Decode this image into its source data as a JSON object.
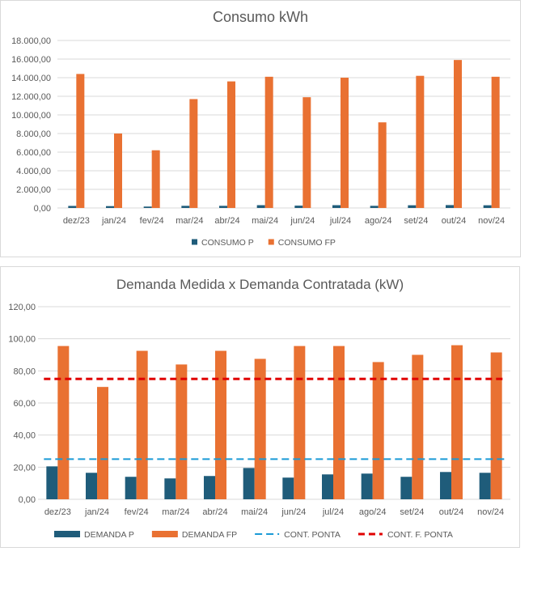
{
  "chart_data": [
    {
      "type": "bar",
      "title": "Consumo kWh",
      "categories": [
        "dez/23",
        "jan/24",
        "fev/24",
        "mar/24",
        "abr/24",
        "mai/24",
        "jun/24",
        "jul/24",
        "ago/24",
        "set/24",
        "out/24",
        "nov/24"
      ],
      "series": [
        {
          "name": "CONSUMO P",
          "color": "#1F5C7A",
          "values": [
            220,
            200,
            150,
            230,
            230,
            300,
            250,
            300,
            230,
            290,
            310,
            290
          ]
        },
        {
          "name": "CONSUMO FP",
          "color": "#E97132",
          "values": [
            14400,
            8000,
            6200,
            11700,
            13600,
            14100,
            11900,
            14000,
            9200,
            14200,
            15900,
            14100
          ]
        }
      ],
      "yticks": [
        "0,00",
        "2.000,00",
        "4.000,00",
        "6.000,00",
        "8.000,00",
        "10.000,00",
        "12.000,00",
        "14.000,00",
        "16.000,00",
        "18.000,00"
      ],
      "ylim": [
        0,
        18000
      ],
      "grid": true,
      "legend_position": "bottom"
    },
    {
      "type": "bar",
      "title": "Demanda Medida x Demanda Contratada (kW)",
      "categories": [
        "dez/23",
        "jan/24",
        "fev/24",
        "mar/24",
        "abr/24",
        "mai/24",
        "jun/24",
        "jul/24",
        "ago/24",
        "set/24",
        "out/24",
        "nov/24"
      ],
      "series": [
        {
          "name": "DEMANDA P",
          "type": "bar",
          "color": "#1F5C7A",
          "values": [
            20.5,
            16.5,
            14,
            13,
            14.5,
            19.5,
            13.5,
            15.5,
            16,
            14,
            17,
            16.5
          ]
        },
        {
          "name": "DEMANDA FP",
          "type": "bar",
          "color": "#E97132",
          "values": [
            95.5,
            70,
            92.5,
            84,
            92.5,
            87.5,
            95.5,
            95.5,
            85.5,
            90,
            96,
            91.5
          ]
        },
        {
          "name": "CONT. PONTA",
          "type": "line",
          "style": "dashed",
          "color": "#1A9AD6",
          "values": [
            25,
            25,
            25,
            25,
            25,
            25,
            25,
            25,
            25,
            25,
            25,
            25
          ]
        },
        {
          "name": "CONT. F. PONTA",
          "type": "line",
          "style": "dashed",
          "color": "#E00000",
          "values": [
            75,
            75,
            75,
            75,
            75,
            75,
            75,
            75,
            75,
            75,
            75,
            75
          ]
        }
      ],
      "yticks": [
        "0,00",
        "20,00",
        "40,00",
        "60,00",
        "80,00",
        "100,00",
        "120,00"
      ],
      "ylim": [
        0,
        120
      ],
      "grid": true,
      "legend_position": "bottom"
    }
  ]
}
